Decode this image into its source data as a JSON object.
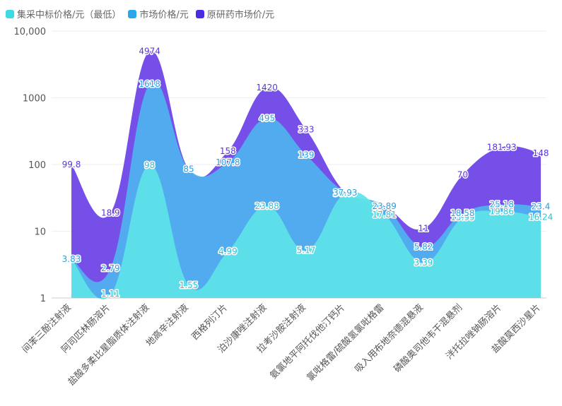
{
  "chart_data": {
    "type": "area",
    "y_scale": "log",
    "ylim": [
      1,
      10000
    ],
    "y_ticks": [
      "1",
      "10",
      "100",
      "1000",
      "10,000"
    ],
    "grid": true,
    "legend_position": "top-left",
    "categories": [
      "间苯三酚注射液",
      "阿司匹林肠溶片",
      "盐酸多柔比星脂质体注射液",
      "地高辛注射液",
      "西格列汀片",
      "泊沙康唑注射液",
      "拉考沙胺注射液",
      "氨氯地平阿托伐他汀钙片",
      "氯吡格雷/硫酸氢氯吡格雷",
      "吸入用布地奈德混悬液",
      "磷酸奥司他韦干混悬剂",
      "泮托拉唑钠肠溶片",
      "盐酸莫西沙星片"
    ],
    "series": [
      {
        "name": "集采中标价格/元（最低）",
        "color": "#5ee3e8",
        "label_color": "#2bc4d6",
        "values": [
          3.83,
          1.11,
          98,
          1.55,
          4.99,
          23.88,
          5.17,
          36.67,
          17.81,
          3.39,
          15.99,
          19.86,
          16.24
        ],
        "labels": [
          "3.83",
          "1.11",
          "98",
          "1.55",
          "4.99",
          "23.88",
          "5.17",
          "36.67",
          "17.81",
          "3.39",
          "15.99",
          "19.86",
          "16.24"
        ]
      },
      {
        "name": "市场价格/元",
        "color": "#4fb3ee",
        "label_color": "#2b9ee3",
        "values": [
          3.83,
          2.79,
          1618,
          85,
          107.8,
          495,
          139,
          37.93,
          23.89,
          5.82,
          18.58,
          25.18,
          23.4
        ],
        "labels": [
          "3.83",
          "2.79",
          "1618",
          "85",
          "107.8",
          "495",
          "139",
          "37.93",
          "23.89",
          "5.82",
          "18.58",
          "25.18",
          "23.4"
        ]
      },
      {
        "name": "原研药市场价/元",
        "color": "#6a3fe6",
        "label_color": "#5a35d6",
        "values": [
          99.8,
          18.9,
          4974,
          85,
          158,
          1420,
          333,
          37.93,
          23.89,
          11,
          70,
          181.93,
          148
        ],
        "labels": [
          "99.8",
          "18.9",
          "4974",
          "",
          "158",
          "1420",
          "333",
          "",
          "",
          "11",
          "70",
          "181.93",
          "148"
        ]
      }
    ]
  }
}
